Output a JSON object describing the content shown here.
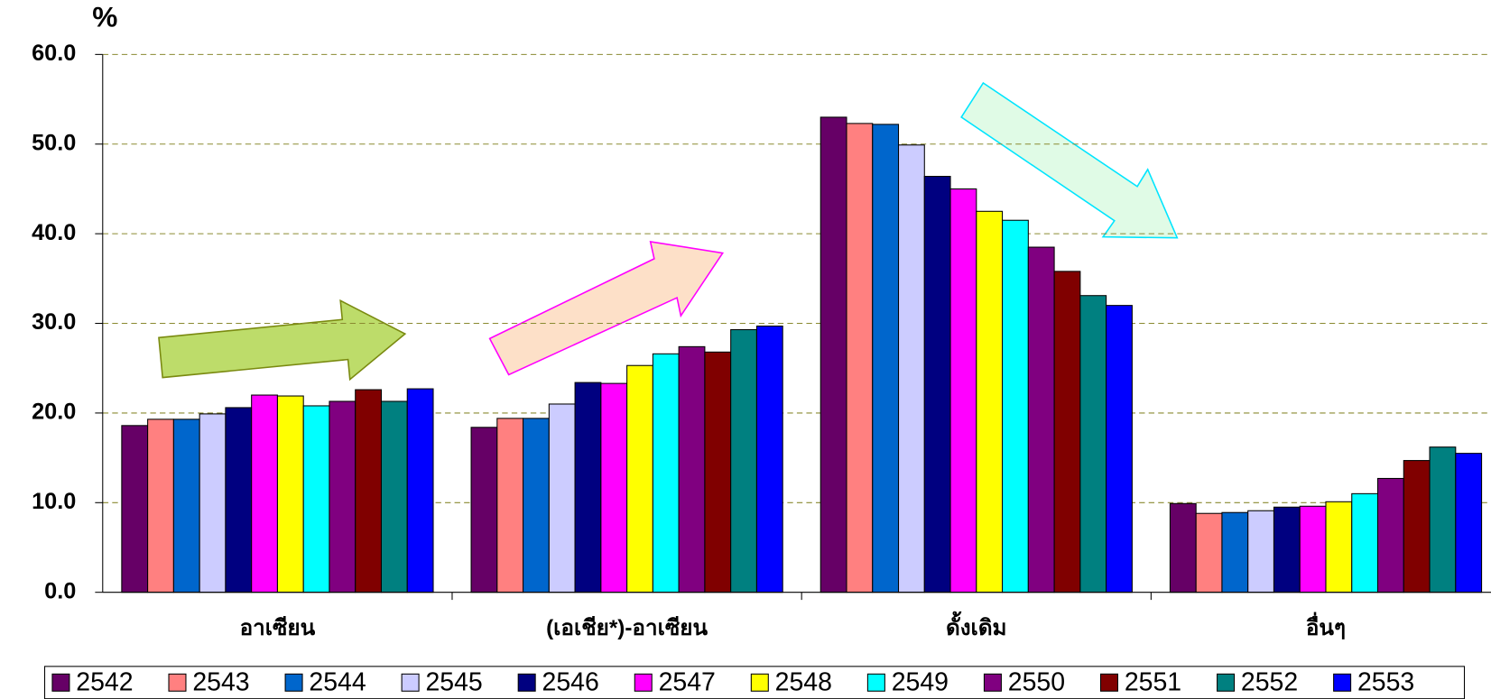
{
  "chart_data": {
    "type": "bar",
    "y_axis_label": "%",
    "categories": [
      "อาเซียน",
      "(เอเชีย*)-อาเซียน",
      "ดั้งเดิม",
      "อื่นๆ"
    ],
    "series": [
      {
        "name": "2542",
        "color": "#660066",
        "values": [
          18.6,
          18.4,
          53.0,
          9.9
        ]
      },
      {
        "name": "2543",
        "color": "#ff8080",
        "values": [
          19.3,
          19.4,
          52.3,
          8.8
        ]
      },
      {
        "name": "2544",
        "color": "#0066cc",
        "values": [
          19.3,
          19.4,
          52.2,
          8.9
        ]
      },
      {
        "name": "2545",
        "color": "#ccccff",
        "values": [
          19.9,
          21.0,
          49.9,
          9.1
        ]
      },
      {
        "name": "2546",
        "color": "#000080",
        "values": [
          20.6,
          23.4,
          46.4,
          9.5
        ]
      },
      {
        "name": "2547",
        "color": "#ff00ff",
        "values": [
          22.0,
          23.3,
          45.0,
          9.6
        ]
      },
      {
        "name": "2548",
        "color": "#ffff00",
        "values": [
          21.9,
          25.3,
          42.5,
          10.1
        ]
      },
      {
        "name": "2549",
        "color": "#00ffff",
        "values": [
          20.8,
          26.6,
          41.5,
          11.0
        ]
      },
      {
        "name": "2550",
        "color": "#800080",
        "values": [
          21.3,
          27.4,
          38.5,
          12.7
        ]
      },
      {
        "name": "2551",
        "color": "#800000",
        "values": [
          22.6,
          26.8,
          35.8,
          14.7
        ]
      },
      {
        "name": "2552",
        "color": "#008080",
        "values": [
          21.3,
          29.3,
          33.1,
          16.2
        ]
      },
      {
        "name": "2553",
        "color": "#0000ff",
        "values": [
          22.7,
          29.7,
          32.0,
          15.5
        ]
      }
    ],
    "ylim": [
      0,
      60
    ],
    "yticks": [
      {
        "value": 0,
        "label": "0.0"
      },
      {
        "value": 10,
        "label": "10.0"
      },
      {
        "value": 20,
        "label": "20.0"
      },
      {
        "value": 30,
        "label": "30.0"
      },
      {
        "value": 40,
        "label": "40.0"
      },
      {
        "value": 50,
        "label": "50.0"
      },
      {
        "value": 60,
        "label": "60.0"
      }
    ],
    "grid": true,
    "legend": "bottom"
  }
}
